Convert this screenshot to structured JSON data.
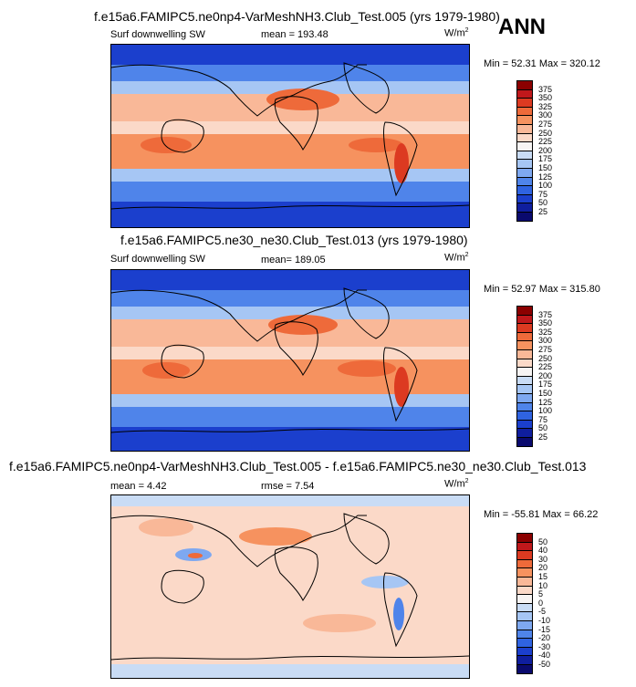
{
  "season_label": "ANN",
  "chart_data": [
    {
      "type": "heatmap",
      "title": "f.e15a6.FAMIPC5.ne0np4-VarMeshNH3.Club_Test.005 (yrs 1979-1980)",
      "left_label": "Surf downwelling SW",
      "mean_label": "mean = 193.48",
      "units_main": "W/m",
      "units_exp": "2",
      "minmax_label": "Min = 52.31 Max = 320.12",
      "min": 52.31,
      "max": 320.12,
      "mean": 193.48,
      "levels": [
        "375",
        "350",
        "325",
        "300",
        "275",
        "250",
        "225",
        "200",
        "175",
        "150",
        "125",
        "100",
        "75",
        "50",
        "25"
      ],
      "colors": [
        "#8b0000",
        "#c0181b",
        "#dc3a21",
        "#ee6a3a",
        "#f6925f",
        "#f9b898",
        "#fbd9c8",
        "#f7f4f3",
        "#c9dcf5",
        "#a6c6f4",
        "#7ea8f0",
        "#4f84ea",
        "#2f63e1",
        "#1b3fcd",
        "#0f1e9e",
        "#0a0a6e"
      ]
    },
    {
      "type": "heatmap",
      "title": "f.e15a6.FAMIPC5.ne30_ne30.Club_Test.013 (yrs 1979-1980)",
      "left_label": "Surf downwelling SW",
      "mean_label": "mean= 189.05",
      "units_main": "W/m",
      "units_exp": "2",
      "minmax_label": "Min = 52.97 Max = 315.80",
      "min": 52.97,
      "max": 315.8,
      "mean": 189.05,
      "levels": [
        "375",
        "350",
        "325",
        "300",
        "275",
        "250",
        "225",
        "200",
        "175",
        "150",
        "125",
        "100",
        "75",
        "50",
        "25"
      ],
      "colors": [
        "#8b0000",
        "#c0181b",
        "#dc3a21",
        "#ee6a3a",
        "#f6925f",
        "#f9b898",
        "#fbd9c8",
        "#f7f4f3",
        "#c9dcf5",
        "#a6c6f4",
        "#7ea8f0",
        "#4f84ea",
        "#2f63e1",
        "#1b3fcd",
        "#0f1e9e",
        "#0a0a6e"
      ]
    },
    {
      "type": "heatmap",
      "title": "f.e15a6.FAMIPC5.ne0np4-VarMeshNH3.Club_Test.005 - f.e15a6.FAMIPC5.ne30_ne30.Club_Test.013",
      "mean_label": "mean = 4.42",
      "rmse_label": "rmse = 7.54",
      "units_main": "W/m",
      "units_exp": "2",
      "minmax_label": "Min = -55.81 Max = 66.22",
      "min": -55.81,
      "max": 66.22,
      "mean": 4.42,
      "rmse": 7.54,
      "levels": [
        "50",
        "40",
        "30",
        "20",
        "15",
        "10",
        "5",
        "0",
        "-5",
        "-10",
        "-15",
        "-20",
        "-30",
        "-40",
        "-50"
      ],
      "colors": [
        "#8b0000",
        "#c0181b",
        "#dc3a21",
        "#ee6a3a",
        "#f6925f",
        "#f9b898",
        "#fbd9c8",
        "#f7f4f3",
        "#c9dcf5",
        "#a6c6f4",
        "#7ea8f0",
        "#4f84ea",
        "#2f63e1",
        "#1b3fcd",
        "#0f1e9e",
        "#0a0a6e"
      ]
    }
  ]
}
